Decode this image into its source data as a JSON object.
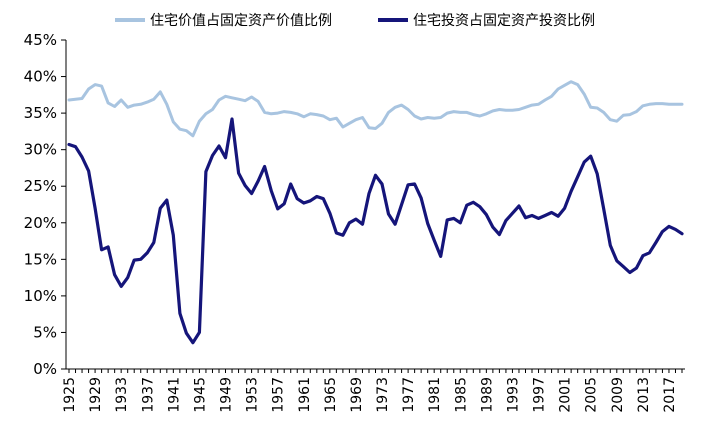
{
  "chart_data": {
    "type": "line",
    "title": "",
    "xlabel": "",
    "ylabel": "",
    "ylim": [
      0,
      45
    ],
    "xlim": [
      1925,
      2019
    ],
    "grid": false,
    "legend_position": "top",
    "y_ticks": [
      "0%",
      "5%",
      "10%",
      "15%",
      "20%",
      "25%",
      "30%",
      "35%",
      "40%",
      "45%"
    ],
    "x_ticks": [
      "1925",
      "1929",
      "1933",
      "1937",
      "1941",
      "1945",
      "1949",
      "1953",
      "1957",
      "1961",
      "1965",
      "1969",
      "1973",
      "1977",
      "1981",
      "1985",
      "1989",
      "1993",
      "1997",
      "2001",
      "2005",
      "2009",
      "2013",
      "2017"
    ],
    "x": [
      1925,
      1926,
      1927,
      1928,
      1929,
      1930,
      1931,
      1932,
      1933,
      1934,
      1935,
      1936,
      1937,
      1938,
      1939,
      1940,
      1941,
      1942,
      1943,
      1944,
      1945,
      1946,
      1947,
      1948,
      1949,
      1950,
      1951,
      1952,
      1953,
      1954,
      1955,
      1956,
      1957,
      1958,
      1959,
      1960,
      1961,
      1962,
      1963,
      1964,
      1965,
      1966,
      1967,
      1968,
      1969,
      1970,
      1971,
      1972,
      1973,
      1974,
      1975,
      1976,
      1977,
      1978,
      1979,
      1980,
      1981,
      1982,
      1983,
      1984,
      1985,
      1986,
      1987,
      1988,
      1989,
      1990,
      1991,
      1992,
      1993,
      1994,
      1995,
      1996,
      1997,
      1998,
      1999,
      2000,
      2001,
      2002,
      2003,
      2004,
      2005,
      2006,
      2007,
      2008,
      2009,
      2010,
      2011,
      2012,
      2013,
      2014,
      2015,
      2016,
      2017,
      2018,
      2019
    ],
    "series": [
      {
        "name": "住宅价值占固定资产价值比例",
        "color": "#a8c4e0",
        "values": [
          36.8,
          36.9,
          37.0,
          38.3,
          38.9,
          38.7,
          36.4,
          35.9,
          36.8,
          35.8,
          36.1,
          36.2,
          36.5,
          36.9,
          37.9,
          36.2,
          33.8,
          32.8,
          32.6,
          31.9,
          33.9,
          34.9,
          35.5,
          36.8,
          37.3,
          37.1,
          36.9,
          36.7,
          37.2,
          36.6,
          35.1,
          34.9,
          35.0,
          35.2,
          35.1,
          34.9,
          34.5,
          34.9,
          34.8,
          34.6,
          34.1,
          34.3,
          33.1,
          33.6,
          34.1,
          34.4,
          33.0,
          32.9,
          33.6,
          35.1,
          35.8,
          36.1,
          35.5,
          34.6,
          34.2,
          34.4,
          34.3,
          34.4,
          35.0,
          35.2,
          35.1,
          35.1,
          34.8,
          34.6,
          34.9,
          35.3,
          35.5,
          35.4,
          35.4,
          35.5,
          35.8,
          36.1,
          36.2,
          36.8,
          37.3,
          38.3,
          38.8,
          39.3,
          38.9,
          37.6,
          35.8,
          35.7,
          35.1,
          34.1,
          33.9,
          34.7,
          34.8,
          35.2,
          36.0,
          36.2,
          36.3,
          36.3,
          36.2,
          36.2,
          36.2
        ]
      },
      {
        "name": "住宅投资占固定资产投资比例",
        "color": "#15157a",
        "values": [
          30.7,
          30.4,
          29.0,
          27.1,
          22.0,
          16.3,
          16.7,
          12.9,
          11.3,
          12.5,
          14.9,
          15.0,
          15.9,
          17.3,
          22.0,
          23.1,
          18.3,
          7.6,
          4.9,
          3.6,
          5.0,
          27.0,
          29.2,
          30.5,
          28.9,
          34.2,
          26.8,
          25.1,
          24.0,
          25.7,
          27.7,
          24.4,
          21.9,
          22.6,
          25.3,
          23.3,
          22.7,
          23.0,
          23.6,
          23.3,
          21.3,
          18.6,
          18.3,
          20.0,
          20.5,
          19.8,
          24.0,
          26.5,
          25.3,
          21.2,
          19.8,
          22.5,
          25.2,
          25.3,
          23.4,
          19.9,
          17.6,
          15.4,
          20.4,
          20.6,
          20.0,
          22.4,
          22.8,
          22.2,
          21.1,
          19.4,
          18.4,
          20.3,
          21.3,
          22.3,
          20.7,
          21.0,
          20.6,
          21.0,
          21.4,
          20.9,
          22.0,
          24.3,
          26.3,
          28.3,
          29.1,
          26.7,
          21.9,
          16.9,
          14.8,
          14.0,
          13.2,
          13.8,
          15.5,
          15.9,
          17.3,
          18.8,
          19.5,
          19.1,
          18.5
        ]
      }
    ]
  }
}
